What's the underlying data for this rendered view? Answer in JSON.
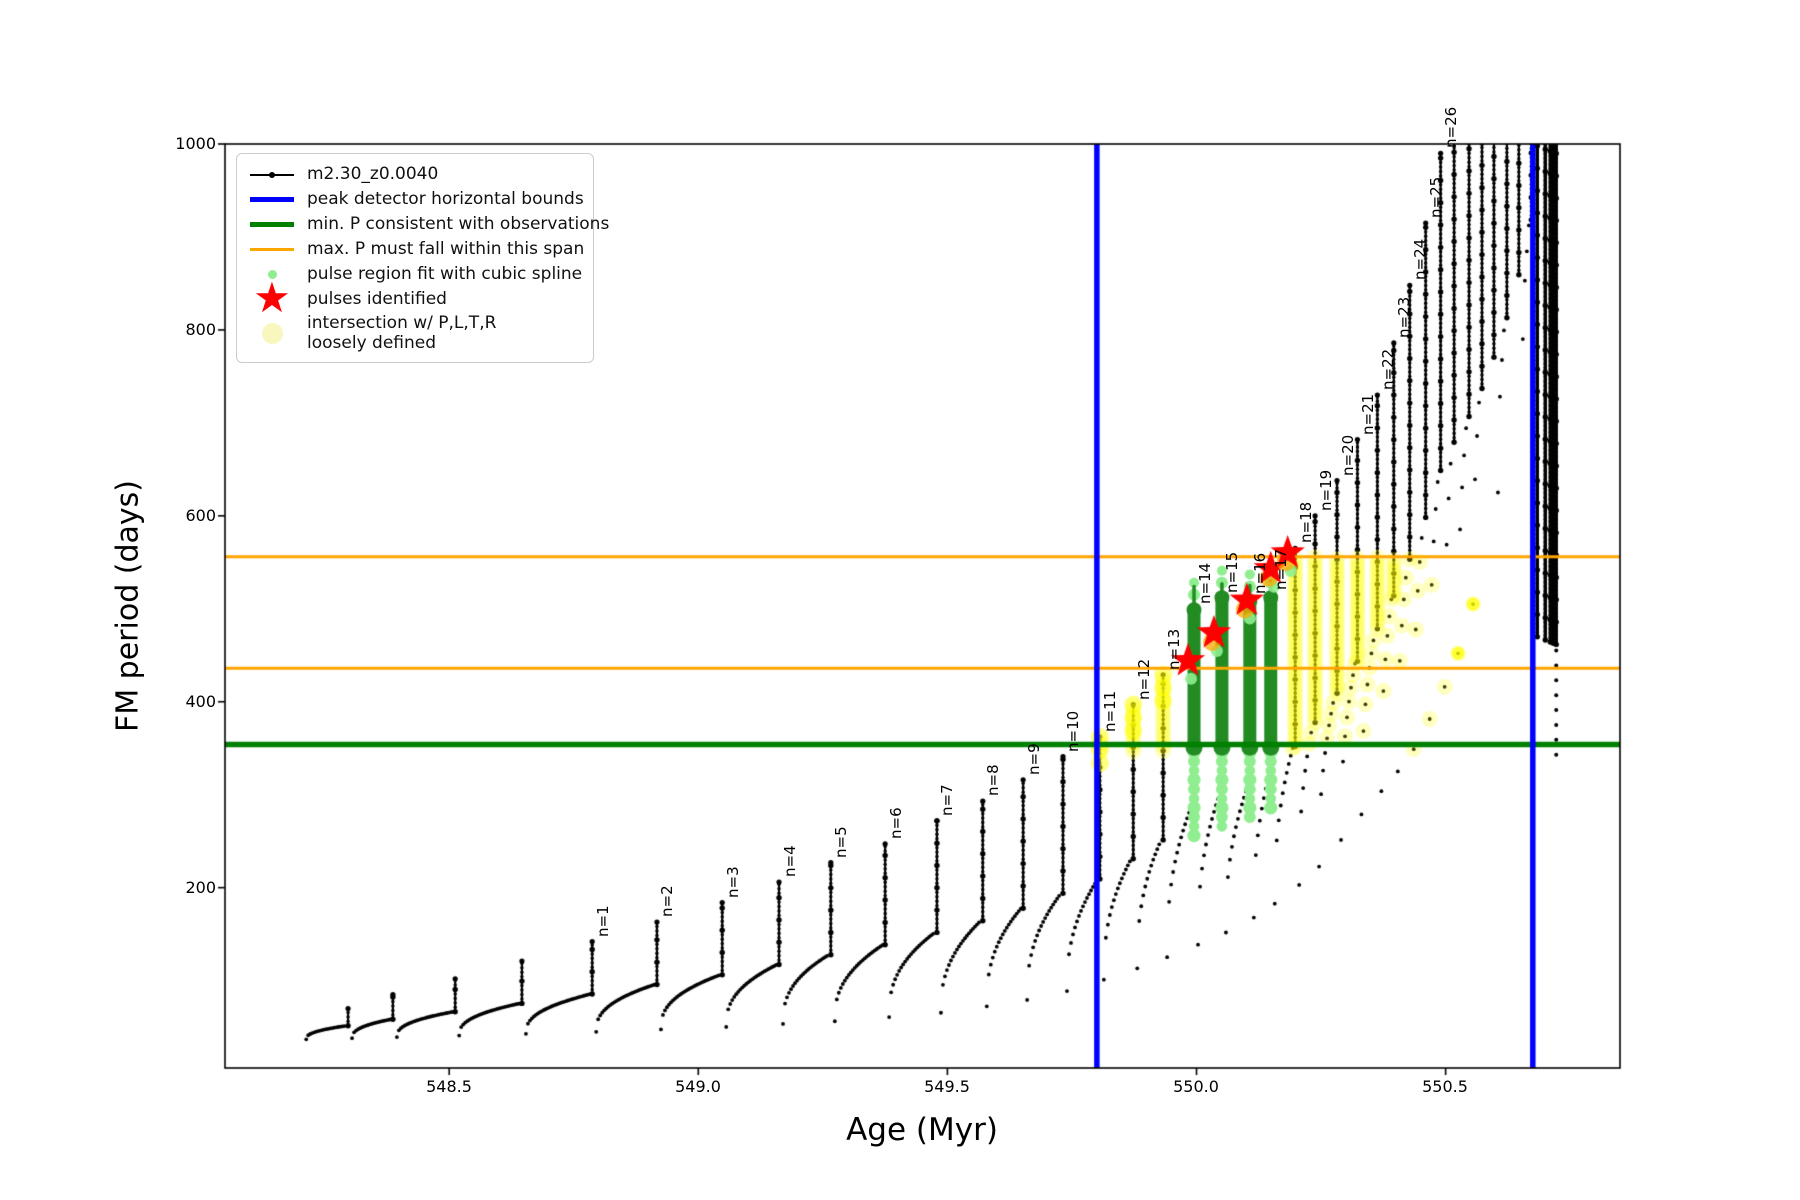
{
  "colors": {
    "track": "#000000",
    "bounds": "#0000ff",
    "min_p": "#008000",
    "max_p": "#ffa500",
    "spline_fit": "#90ee90",
    "spline_region": "#228b22",
    "pulse_star": "#ff0000",
    "intersection": "#ffff00",
    "intersection_legend": "#f7f7be"
  },
  "legend": {
    "items": [
      {
        "label": "m2.30_z0.0040",
        "swatch": "line-dot",
        "color_key": "track"
      },
      {
        "label": "peak detector horizontal bounds",
        "swatch": "thick-line",
        "color_key": "bounds"
      },
      {
        "label": "min. P consistent with observations",
        "swatch": "thick-line",
        "color_key": "min_p"
      },
      {
        "label": "max. P must fall within this span",
        "swatch": "medium-line",
        "color_key": "max_p"
      },
      {
        "label": "pulse region fit with cubic spline",
        "swatch": "small-dot",
        "color_key": "spline_fit"
      },
      {
        "label": "pulses identified",
        "swatch": "star",
        "color_key": "pulse_star"
      },
      {
        "label_line1": "intersection w/ P,L,T,R",
        "label_line2": "loosely defined",
        "swatch": "large-dot",
        "color_key": "intersection_legend"
      }
    ]
  },
  "chart_data": {
    "type": "scatter",
    "title": "",
    "xlabel": "Age (Myr)",
    "ylabel": "FM period (days)",
    "xlim": [
      548.05,
      550.85
    ],
    "ylim": [
      6,
      1000
    ],
    "grid": false,
    "legend_position": "upper left",
    "x_ticks": [
      548.5,
      549.0,
      549.5,
      550.0,
      550.5
    ],
    "x_tick_labels": [
      "548.5",
      "549.0",
      "549.5",
      "550.0",
      "550.5"
    ],
    "y_ticks": [
      200,
      400,
      600,
      800,
      1000
    ],
    "y_tick_labels": [
      "200",
      "400",
      "600",
      "800",
      "1000"
    ],
    "track_label": "m2.30_z0.0040",
    "track_start_age": 548.205,
    "peak_detector_bounds_age": [
      549.8,
      550.675
    ],
    "min_P_observations": 354,
    "max_P_span": [
      436,
      556
    ],
    "n_label_prefix": "n=",
    "pre_pulses": [
      {
        "age": 548.297,
        "peak": 70
      },
      {
        "age": 548.387,
        "peak": 85
      },
      {
        "age": 548.512,
        "peak": 102
      },
      {
        "age": 548.646,
        "peak": 121
      }
    ],
    "pulses": [
      {
        "n": 1,
        "age": 548.787,
        "peak": 142
      },
      {
        "n": 2,
        "age": 548.917,
        "peak": 163
      },
      {
        "n": 3,
        "age": 549.048,
        "peak": 184
      },
      {
        "n": 4,
        "age": 549.162,
        "peak": 206
      },
      {
        "n": 5,
        "age": 549.266,
        "peak": 227
      },
      {
        "n": 6,
        "age": 549.375,
        "peak": 247
      },
      {
        "n": 7,
        "age": 549.479,
        "peak": 272
      },
      {
        "n": 8,
        "age": 549.571,
        "peak": 293
      },
      {
        "n": 9,
        "age": 549.652,
        "peak": 316
      },
      {
        "n": 10,
        "age": 549.732,
        "peak": 341
      },
      {
        "n": 11,
        "age": 549.806,
        "peak": 362
      },
      {
        "n": 12,
        "age": 549.873,
        "peak": 397
      },
      {
        "n": 13,
        "age": 549.933,
        "peak": 429
      },
      {
        "n": 14,
        "age": 549.995,
        "peak": 500
      },
      {
        "n": 15,
        "age": 550.051,
        "peak": 512
      },
      {
        "n": 16,
        "age": 550.107,
        "peak": 510
      },
      {
        "n": 17,
        "age": 550.149,
        "peak": 515
      },
      {
        "n": 18,
        "age": 550.198,
        "peak": 565
      },
      {
        "n": 19,
        "age": 550.238,
        "peak": 600
      },
      {
        "n": 20,
        "age": 550.282,
        "peak": 638
      },
      {
        "n": 21,
        "age": 550.323,
        "peak": 682
      },
      {
        "n": 22,
        "age": 550.363,
        "peak": 730
      },
      {
        "n": 23,
        "age": 550.396,
        "peak": 786
      },
      {
        "n": 24,
        "age": 550.428,
        "peak": 848
      },
      {
        "n": 25,
        "age": 550.46,
        "peak": 915
      },
      {
        "n": 26,
        "age": 550.49,
        "peak": 990
      }
    ],
    "extra_spike_ages": [
      550.517,
      550.547,
      550.573,
      550.597,
      550.623,
      550.647,
      550.672
    ],
    "post_detector_spike_ages": [
      550.684,
      550.7,
      550.71,
      550.716,
      550.722
    ],
    "clipped_peak": 1015,
    "base_envelope": [
      [
        548.15,
        36
      ],
      [
        548.45,
        40
      ],
      [
        548.75,
        44
      ],
      [
        549.05,
        50
      ],
      [
        549.3,
        57
      ],
      [
        549.5,
        66
      ],
      [
        549.65,
        78
      ],
      [
        549.75,
        90
      ],
      [
        549.82,
        102
      ],
      [
        549.88,
        113
      ],
      [
        549.94,
        125
      ],
      [
        550.0,
        138
      ],
      [
        550.06,
        152
      ],
      [
        550.11,
        166
      ],
      [
        550.155,
        182
      ],
      [
        550.2,
        200
      ],
      [
        550.245,
        222
      ],
      [
        550.285,
        248
      ],
      [
        550.325,
        275
      ],
      [
        550.365,
        300
      ],
      [
        550.4,
        322
      ],
      [
        550.435,
        348
      ],
      [
        550.465,
        378
      ],
      [
        550.495,
        412
      ],
      [
        550.525,
        452
      ],
      [
        550.555,
        505
      ],
      [
        550.58,
        560
      ],
      [
        550.605,
        625
      ],
      [
        550.63,
        700
      ],
      [
        550.655,
        790
      ],
      [
        550.675,
        880
      ],
      [
        550.683,
        470
      ],
      [
        550.73,
        460
      ]
    ],
    "spline_regions": [
      {
        "age": 549.995,
        "light_bottom": 248,
        "dark_top": 499,
        "tip": 524
      },
      {
        "age": 550.051,
        "light_bottom": 257,
        "dark_top": 512,
        "tip": 527
      },
      {
        "age": 550.107,
        "light_bottom": 268,
        "dark_top": 508,
        "tip": 525
      },
      {
        "age": 550.149,
        "light_bottom": 282,
        "dark_top": 512,
        "tip": 530
      }
    ],
    "stars": [
      {
        "age": 549.983,
        "period": 444
      },
      {
        "age": 550.035,
        "period": 474
      },
      {
        "age": 550.101,
        "period": 509
      },
      {
        "age": 550.149,
        "period": 543
      },
      {
        "age": 550.183,
        "period": 560
      }
    ],
    "yellow_band_P": [
      346,
      557
    ],
    "yellow_cap_pulses": [
      11,
      12,
      13
    ],
    "tail_dots": {
      "age": 550.722,
      "from": 455,
      "to": 330,
      "step": 16
    }
  }
}
